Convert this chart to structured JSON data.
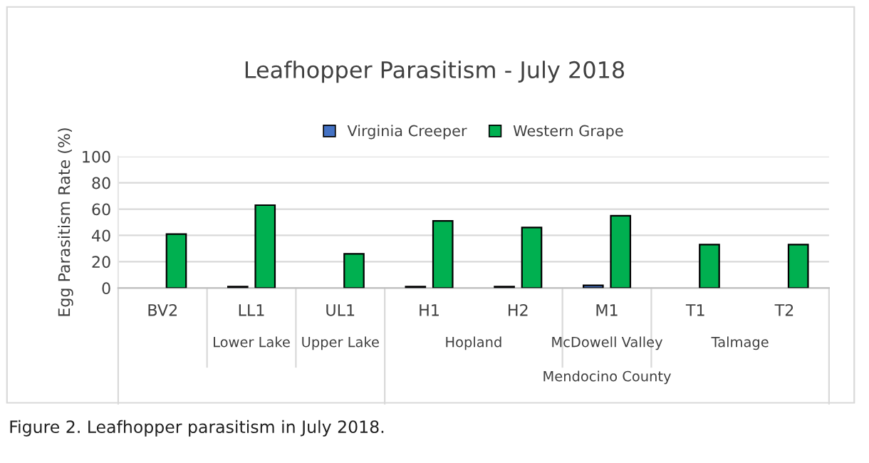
{
  "chart_data": {
    "type": "bar",
    "title": "Leafhopper Parasitism - July 2018",
    "ylabel": "Egg Parasitism Rate (%)",
    "categories": [
      "BV2",
      "LL1",
      "UL1",
      "H1",
      "H2",
      "M1",
      "T1",
      "T2"
    ],
    "series": [
      {
        "name": "Virginia Creeper",
        "color": "#4472c4",
        "values": [
          null,
          1,
          null,
          1,
          1,
          2,
          null,
          null
        ]
      },
      {
        "name": "Western Grape",
        "color": "#00b050",
        "values": [
          41,
          63,
          26,
          51,
          46,
          55,
          33,
          33
        ]
      }
    ],
    "ylim": [
      0,
      100
    ],
    "yticks": [
      0,
      20,
      40,
      60,
      80,
      100
    ],
    "grid": "y",
    "legend": "top",
    "annotations": [
      "Lower Lake",
      "Upper Lake",
      "Hopland",
      "McDowell Valley",
      "Talmage",
      "Mendocino County",
      "Figure 2. Leafhopper parasitism in July 2018."
    ]
  }
}
